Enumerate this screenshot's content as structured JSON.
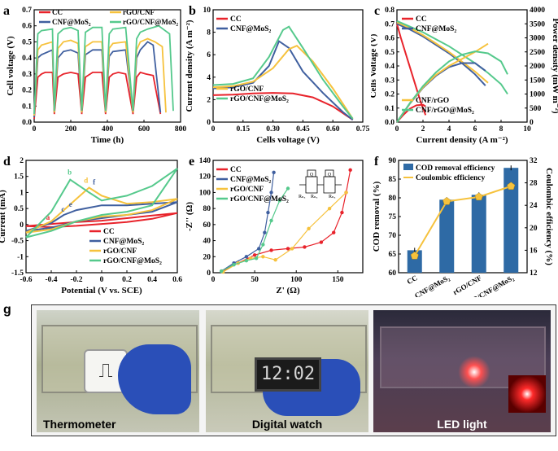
{
  "colors": {
    "CC": "#e8232b",
    "CNF@MoS2": "#3f5f9f",
    "rGO/CNF": "#f6c23d",
    "rGO/CNF@MoS2": "#55c98c",
    "bar": "#2e6aa5",
    "coul": "#f6c23d"
  },
  "panel_letters": {
    "a": "a",
    "b": "b",
    "c": "c",
    "d": "d",
    "e": "e",
    "f": "f",
    "g": "g"
  },
  "chart_data": [
    {
      "id": "a",
      "type": "line",
      "xlabel": "Time (h)",
      "ylabel": "Cell voltage (V)",
      "xlim": [
        0,
        800
      ],
      "ylim": [
        0,
        0.7
      ],
      "xticks": [
        "0",
        "200",
        "400",
        "600",
        "800"
      ],
      "yticks": [
        "0.0",
        "0.1",
        "0.2",
        "0.3",
        "0.4",
        "0.5",
        "0.6",
        "0.7"
      ],
      "legend": [
        "CC",
        "CNF@MoS2",
        "rGO/CNF",
        "rGO/CNF@MoS2"
      ],
      "series": [
        {
          "name": "CC",
          "color": "#e8232b",
          "x": [
            0,
            20,
            40,
            60,
            100,
            110,
            130,
            160,
            200,
            240,
            260,
            280,
            320,
            370,
            390,
            410,
            430,
            460,
            500,
            540,
            560,
            580,
            610,
            650,
            690
          ],
          "y": [
            0.02,
            0.28,
            0.3,
            0.31,
            0.31,
            0.05,
            0.28,
            0.3,
            0.31,
            0.3,
            0.05,
            0.28,
            0.31,
            0.31,
            0.05,
            0.28,
            0.3,
            0.31,
            0.3,
            0.05,
            0.28,
            0.31,
            0.3,
            0.29,
            0.05
          ]
        },
        {
          "name": "CNF@MoS2",
          "color": "#3f5f9f",
          "x": [
            0,
            20,
            40,
            100,
            110,
            130,
            160,
            200,
            240,
            260,
            280,
            320,
            370,
            390,
            410,
            430,
            500,
            540,
            560,
            580,
            620,
            650,
            690
          ],
          "y": [
            0.03,
            0.4,
            0.42,
            0.45,
            0.06,
            0.4,
            0.44,
            0.45,
            0.43,
            0.06,
            0.42,
            0.45,
            0.45,
            0.06,
            0.41,
            0.44,
            0.45,
            0.06,
            0.4,
            0.45,
            0.5,
            0.48,
            0.06
          ]
        },
        {
          "name": "rGO/CNF",
          "color": "#f6c23d",
          "x": [
            0,
            20,
            40,
            100,
            110,
            130,
            160,
            200,
            240,
            260,
            280,
            320,
            370,
            390,
            410,
            430,
            500,
            540,
            560,
            580,
            620,
            660,
            700,
            720
          ],
          "y": [
            0.04,
            0.45,
            0.48,
            0.5,
            0.06,
            0.46,
            0.5,
            0.51,
            0.49,
            0.06,
            0.47,
            0.5,
            0.5,
            0.06,
            0.46,
            0.49,
            0.5,
            0.06,
            0.45,
            0.5,
            0.52,
            0.5,
            0.47,
            0.06
          ]
        },
        {
          "name": "rGO/CNF@MoS2",
          "color": "#55c98c",
          "x": [
            0,
            20,
            40,
            100,
            110,
            130,
            160,
            200,
            240,
            260,
            280,
            320,
            370,
            390,
            410,
            430,
            500,
            540,
            560,
            580,
            620,
            680,
            740,
            760
          ],
          "y": [
            0.05,
            0.55,
            0.57,
            0.58,
            0.07,
            0.55,
            0.58,
            0.59,
            0.57,
            0.07,
            0.56,
            0.59,
            0.59,
            0.07,
            0.55,
            0.58,
            0.59,
            0.07,
            0.52,
            0.56,
            0.58,
            0.6,
            0.55,
            0.07
          ]
        }
      ]
    },
    {
      "id": "b",
      "type": "line",
      "xlabel": "Cells voltage (V)",
      "ylabel": "Current density (A m⁻²)",
      "xlim": [
        0,
        0.75
      ],
      "ylim": [
        0,
        10
      ],
      "xticks": [
        "0",
        "0.15",
        "0.30",
        "0.45",
        "0.60",
        "0.75"
      ],
      "yticks": [
        "0",
        "2",
        "4",
        "6",
        "8",
        "10"
      ],
      "legend": [
        "CC",
        "CNF@MoS2",
        "rGO/CNF",
        "rGO/CNF@MoS2"
      ],
      "series": [
        {
          "name": "CC",
          "color": "#e8232b",
          "x": [
            0,
            0.1,
            0.2,
            0.3,
            0.4,
            0.5,
            0.6,
            0.7
          ],
          "y": [
            2.4,
            2.45,
            2.55,
            2.6,
            2.55,
            2.2,
            1.4,
            0.2
          ]
        },
        {
          "name": "CNF@MoS2",
          "color": "#3f5f9f",
          "x": [
            0,
            0.1,
            0.2,
            0.28,
            0.33,
            0.38,
            0.45,
            0.55,
            0.65,
            0.7
          ],
          "y": [
            3.0,
            3.1,
            3.5,
            5.0,
            7.2,
            6.6,
            4.5,
            2.6,
            0.9,
            0.2
          ]
        },
        {
          "name": "rGO/CNF",
          "color": "#f6c23d",
          "x": [
            0,
            0.1,
            0.2,
            0.3,
            0.38,
            0.42,
            0.5,
            0.6,
            0.7
          ],
          "y": [
            3.1,
            3.2,
            3.6,
            4.8,
            6.5,
            6.8,
            5.4,
            3.0,
            0.3
          ]
        },
        {
          "name": "rGO/CNF@MoS2",
          "color": "#55c98c",
          "x": [
            0,
            0.1,
            0.2,
            0.28,
            0.35,
            0.38,
            0.45,
            0.55,
            0.65,
            0.7
          ],
          "y": [
            3.3,
            3.4,
            3.9,
            5.8,
            8.2,
            8.5,
            6.6,
            3.8,
            1.4,
            0.3
          ]
        }
      ]
    },
    {
      "id": "c",
      "type": "line",
      "xlabel": "Current density (A m⁻²)",
      "ylabel": "Cells Voltage (V)",
      "y2label": "Power density (mW m⁻²)",
      "xlim": [
        0,
        10
      ],
      "ylim": [
        0,
        0.8
      ],
      "y2lim": [
        0,
        4000
      ],
      "xticks": [
        "0",
        "2",
        "4",
        "6",
        "8",
        "10"
      ],
      "yticks": [
        "0.0",
        "0.1",
        "0.2",
        "0.3",
        "0.4",
        "0.5",
        "0.6",
        "0.7",
        "0.8"
      ],
      "y2ticks": [
        "0",
        "500",
        "1000",
        "1500",
        "2000",
        "2500",
        "3000",
        "3500",
        "4000"
      ],
      "legend": [
        "CC",
        "CNF@MoS2",
        "CNF/rGO",
        "CNF/rGO@MoS2"
      ],
      "polarization": [
        {
          "name": "CC",
          "color": "#e8232b",
          "x": [
            0,
            0.3,
            0.8,
            1.3,
            1.8,
            2.2
          ],
          "y": [
            0.7,
            0.6,
            0.45,
            0.3,
            0.15,
            0.05
          ]
        },
        {
          "name": "CNF@MoS2",
          "color": "#3f5f9f",
          "x": [
            0,
            1,
            2,
            3,
            4,
            5,
            6,
            6.8
          ],
          "y": [
            0.7,
            0.66,
            0.61,
            0.55,
            0.49,
            0.42,
            0.34,
            0.26
          ]
        },
        {
          "name": "CNF/rGO",
          "color": "#f6c23d",
          "x": [
            0,
            1,
            2,
            3,
            4,
            5,
            6,
            7
          ],
          "y": [
            0.71,
            0.67,
            0.62,
            0.56,
            0.5,
            0.43,
            0.36,
            0.28
          ]
        },
        {
          "name": "CNF/rGO@MoS2",
          "color": "#55c98c",
          "x": [
            0,
            1,
            2,
            3,
            4,
            5,
            6,
            7,
            8,
            8.5
          ],
          "y": [
            0.72,
            0.68,
            0.64,
            0.59,
            0.54,
            0.48,
            0.42,
            0.35,
            0.27,
            0.2
          ]
        }
      ],
      "power": [
        {
          "name": "CC",
          "color": "#e8232b",
          "x": [
            0,
            0.5,
            1,
            1.5,
            2,
            2.2
          ],
          "y": [
            0,
            260,
            480,
            600,
            620,
            560
          ]
        },
        {
          "name": "CNF@MoS2",
          "color": "#3f5f9f",
          "x": [
            0,
            1,
            2,
            3,
            4,
            5,
            6,
            6.8
          ],
          "y": [
            0,
            660,
            1220,
            1650,
            1960,
            2100,
            2100,
            1830
          ]
        },
        {
          "name": "CNF/rGO",
          "color": "#f6c23d",
          "x": [
            0,
            1,
            2,
            3,
            4,
            5,
            6,
            7
          ],
          "y": [
            0,
            670,
            1240,
            1680,
            2000,
            2250,
            2500,
            2790
          ]
        },
        {
          "name": "CNF/rGO@MoS2",
          "color": "#55c98c",
          "x": [
            0,
            1,
            2,
            3,
            4,
            5,
            6,
            7,
            8,
            8.5
          ],
          "y": [
            0,
            680,
            1280,
            1770,
            2160,
            2400,
            2520,
            2450,
            2160,
            1700
          ]
        }
      ]
    },
    {
      "id": "d",
      "type": "line",
      "xlabel": "Potential (V vs. SCE)",
      "ylabel": "Current (mA)",
      "xlim": [
        -0.6,
        0.6
      ],
      "ylim": [
        -1.5,
        2
      ],
      "xticks": [
        "-0.6",
        "-0.4",
        "-0.2",
        "0",
        "0.2",
        "0.4",
        "0.6"
      ],
      "yticks": [
        "-1.5",
        "-1",
        "-0.5",
        "0",
        "0.5",
        "1",
        "1.5",
        "2"
      ],
      "legend": [
        "CC",
        "CNF@MoS2",
        "rGO/CNF",
        "rGO/CNF@MoS2"
      ],
      "annotations": [
        "a",
        "b",
        "c",
        "d",
        "e",
        "f"
      ],
      "series": [
        {
          "name": "CC",
          "color": "#e8232b",
          "x": [
            -0.6,
            -0.4,
            -0.2,
            0,
            0.2,
            0.4,
            0.6,
            0.4,
            0.2,
            0,
            -0.2,
            -0.4,
            -0.6
          ],
          "y": [
            -0.05,
            0.02,
            0.08,
            0.12,
            0.2,
            0.28,
            0.36,
            0.18,
            0.08,
            0.02,
            -0.04,
            -0.08,
            -0.05
          ]
        },
        {
          "name": "CNF@MoS2",
          "color": "#3f5f9f",
          "x": [
            -0.6,
            -0.4,
            -0.3,
            -0.2,
            0,
            0.2,
            0.4,
            0.6,
            0.4,
            0.2,
            0,
            -0.2,
            -0.3,
            -0.4,
            -0.6
          ],
          "y": [
            -0.2,
            0.05,
            0.3,
            0.45,
            0.6,
            0.6,
            0.65,
            0.7,
            0.4,
            0.3,
            0.2,
            0.1,
            0.0,
            -0.1,
            -0.2
          ]
        },
        {
          "name": "rGO/CNF",
          "color": "#f6c23d",
          "x": [
            -0.6,
            -0.4,
            -0.2,
            -0.1,
            0,
            0.2,
            0.4,
            0.6,
            0.4,
            0.2,
            0,
            -0.2,
            -0.4,
            -0.6
          ],
          "y": [
            -0.25,
            0.1,
            0.8,
            1.15,
            0.9,
            0.65,
            0.7,
            0.8,
            0.45,
            0.3,
            0.25,
            0.1,
            -0.15,
            -0.25
          ]
        },
        {
          "name": "rGO/CNF@MoS2",
          "color": "#55c98c",
          "x": [
            -0.6,
            -0.4,
            -0.25,
            -0.1,
            0,
            0.2,
            0.4,
            0.6,
            0.4,
            0.2,
            0,
            -0.2,
            -0.4,
            -0.6
          ],
          "y": [
            -0.4,
            0.4,
            1.4,
            1.0,
            0.75,
            0.9,
            1.2,
            1.75,
            0.6,
            0.4,
            0.3,
            0.1,
            -0.2,
            -0.4
          ]
        }
      ]
    },
    {
      "id": "e",
      "type": "scatter",
      "xlabel": "Z' (Ω)",
      "ylabel": "-Z'' (Ω)",
      "xlim": [
        0,
        180
      ],
      "ylim": [
        0,
        140
      ],
      "xticks": [
        "0",
        "50",
        "100",
        "150"
      ],
      "yticks": [
        "0",
        "20",
        "40",
        "60",
        "80",
        "100",
        "120",
        "140"
      ],
      "legend": [
        "CC",
        "CNF@MoS2",
        "rGO/CNF",
        "rGO/CNF@MoS2"
      ],
      "circuit_labels": [
        "Q",
        "Q",
        "Rₙₓ",
        "Rₙₓ",
        "Rₙₓ"
      ],
      "series": [
        {
          "name": "CC",
          "color": "#e8232b",
          "x": [
            12,
            30,
            50,
            70,
            90,
            110,
            130,
            145,
            155,
            160,
            165
          ],
          "y": [
            2,
            12,
            22,
            28,
            30,
            32,
            38,
            50,
            75,
            100,
            128
          ]
        },
        {
          "name": "CNF@MoS2",
          "color": "#3f5f9f",
          "x": [
            10,
            25,
            40,
            55,
            62,
            66,
            70,
            73
          ],
          "y": [
            2,
            12,
            20,
            30,
            50,
            75,
            100,
            125
          ]
        },
        {
          "name": "rGO/CNF",
          "color": "#f6c23d",
          "x": [
            12,
            30,
            45,
            60,
            75,
            95,
            115,
            140,
            160
          ],
          "y": [
            1,
            12,
            18,
            20,
            16,
            30,
            55,
            80,
            100
          ]
        },
        {
          "name": "rGO/CNF@MoS2",
          "color": "#55c98c",
          "x": [
            10,
            25,
            40,
            52,
            60,
            70,
            80,
            90
          ],
          "y": [
            2,
            10,
            15,
            18,
            35,
            65,
            90,
            105
          ]
        }
      ]
    },
    {
      "id": "f",
      "type": "bar",
      "categories": [
        "CC",
        "CNF@MoS2",
        "rGO/CNF",
        "rGO/CNF@MoS2"
      ],
      "ylabel": "COD removal (%)",
      "y2label": "Coulombic efficiency (%)",
      "ylim": [
        60,
        90
      ],
      "y2lim": [
        12,
        32
      ],
      "yticks": [
        "60",
        "65",
        "70",
        "75",
        "80",
        "85",
        "90"
      ],
      "y2ticks": [
        "12",
        "16",
        "20",
        "24",
        "28",
        "32"
      ],
      "series": [
        {
          "name": "COD removal efficiency",
          "type": "bar",
          "values": [
            66,
            79.5,
            80.8,
            88
          ]
        },
        {
          "name": "Coulombic efficiency",
          "type": "line",
          "values": [
            15,
            24.7,
            25.5,
            27.4
          ]
        }
      ]
    }
  ],
  "photos": [
    {
      "label": "Thermometer",
      "display": "⎍"
    },
    {
      "label": "Digital watch",
      "display": "12:02"
    },
    {
      "label": "LED light",
      "display": ""
    }
  ]
}
